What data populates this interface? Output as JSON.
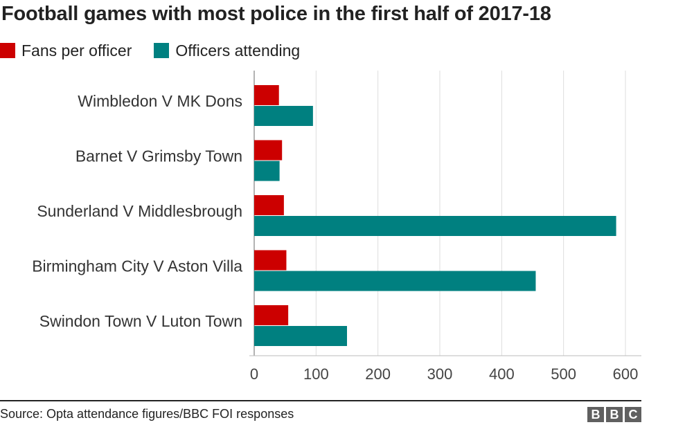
{
  "header": {
    "title": "Football games with most police in the first half of 2017-18"
  },
  "footer": {
    "source": "Source: Opta attendance figures/BBC FOI responses",
    "logo_letters": [
      "B",
      "B",
      "C"
    ]
  },
  "chart_data": {
    "type": "bar",
    "orientation": "horizontal",
    "categories": [
      "Wimbledon V MK Dons",
      "Barnet V Grimsby Town",
      "Sunderland V Middlesbrough",
      "Birmingham City V Aston Villa",
      "Swindon Town V Luton Town"
    ],
    "series": [
      {
        "name": "Fans per officer",
        "color": "#cc0000",
        "values": [
          40,
          45,
          48,
          52,
          55
        ]
      },
      {
        "name": "Officers attending",
        "color": "#008080",
        "values": [
          95,
          41,
          585,
          455,
          150
        ]
      }
    ],
    "xlim": [
      0,
      600
    ],
    "xticks": [
      0,
      100,
      200,
      300,
      400,
      500,
      600
    ],
    "grid": true,
    "legend_position": "top-left"
  }
}
